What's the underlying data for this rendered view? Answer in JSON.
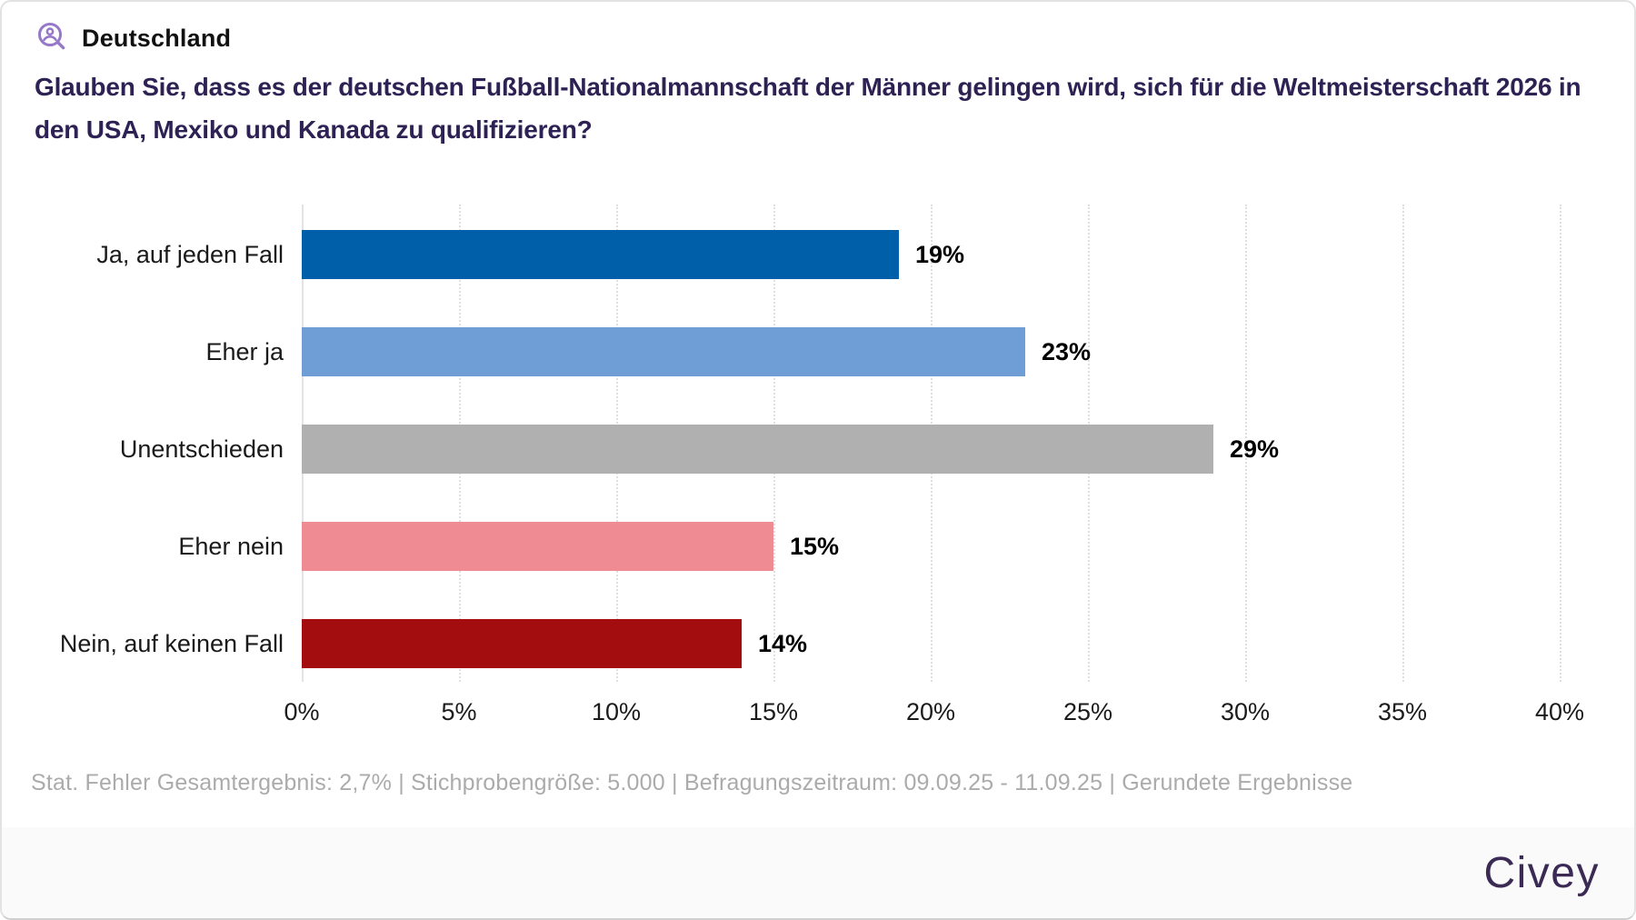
{
  "header": {
    "region": "Deutschland",
    "question_line1": "Glauben Sie, dass es der deutschen Fußball-Nationalmannschaft der Männer gelingen wird, sich für die Weltmeisterschaft 2026 in",
    "question_line2": "den USA, Mexiko und Kanada zu qualifizieren?"
  },
  "chart_data": {
    "type": "bar",
    "orientation": "horizontal",
    "categories": [
      "Ja, auf jeden Fall",
      "Eher ja",
      "Unentschieden",
      "Eher nein",
      "Nein, auf keinen Fall"
    ],
    "values": [
      19,
      23,
      29,
      15,
      14
    ],
    "value_labels": [
      "19%",
      "23%",
      "29%",
      "15%",
      "14%"
    ],
    "bar_colors": [
      "#005fa9",
      "#6f9ed7",
      "#b0b0b0",
      "#ef8b93",
      "#a40d10"
    ],
    "xlim": [
      0,
      40
    ],
    "x_tick_step": 5,
    "x_ticks": [
      "0%",
      "5%",
      "10%",
      "15%",
      "20%",
      "25%",
      "30%",
      "35%",
      "40%"
    ],
    "grid": "vertical-dotted, solid zero line",
    "legend": "none",
    "title": "",
    "xlabel": "",
    "ylabel": ""
  },
  "footnote": "Stat. Fehler Gesamtergebnis: 2,7% | Stichprobengröße: 5.000 | Befragungszeitraum: 09.09.25 - 11.09.25 | Gerundete Ergebnisse",
  "branding": {
    "logo_text": "Civey"
  },
  "colors": {
    "question_text": "#2e2254",
    "footnote_text": "#ababab",
    "gridline": "#dfdfdf",
    "footer_bar_bg": "#fafafa",
    "logo_purple": "#3a2a54",
    "icon_purple": "#9678c8"
  }
}
